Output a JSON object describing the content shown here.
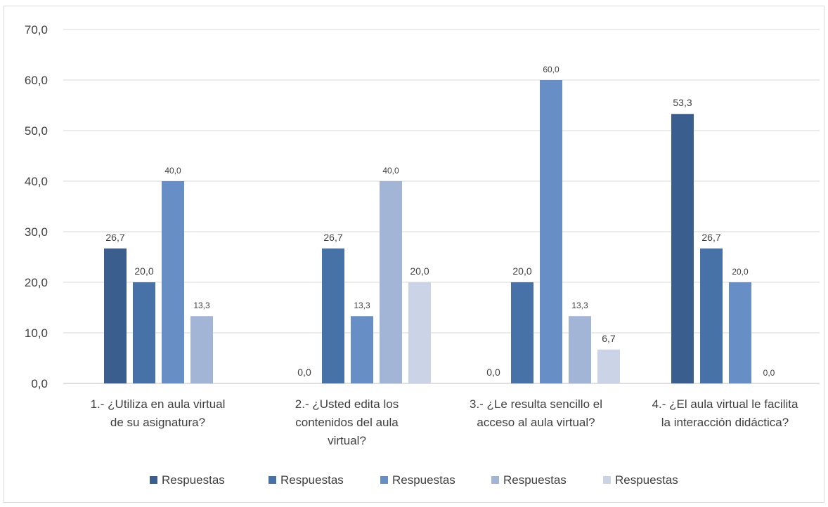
{
  "chart_data": {
    "type": "bar",
    "title": "",
    "xlabel": "",
    "ylabel": "",
    "ylim": [
      0,
      70
    ],
    "yticks": [
      "0,0",
      "10,0",
      "20,0",
      "30,0",
      "40,0",
      "50,0",
      "60,0",
      "70,0"
    ],
    "grid": true,
    "legend_position": "bottom",
    "categories": [
      [
        "1.- ¿Utiliza en aula virtual",
        "de su asignatura?"
      ],
      [
        "2.- ¿Usted edita los",
        "contenidos del aula",
        "virtual?"
      ],
      [
        "3.-  ¿Le resulta sencillo el",
        "acceso al aula virtual?"
      ],
      [
        "4.- ¿El aula virtual le facilita",
        "la interacción didáctica?"
      ]
    ],
    "series": [
      {
        "name": "Respuestas",
        "color": "#3a5f8f",
        "values": [
          26.7,
          0.0,
          0.0,
          53.3
        ],
        "labels": [
          "26,7",
          "0,0",
          "0,0",
          "53,3"
        ]
      },
      {
        "name": "Respuestas",
        "color": "#4672a8",
        "values": [
          20.0,
          26.7,
          20.0,
          26.7
        ],
        "labels": [
          "20,0",
          "26,7",
          "20,0",
          "26,7"
        ]
      },
      {
        "name": "Respuestas",
        "color": "#678fc5",
        "values": [
          40.0,
          13.3,
          60.0,
          20.0
        ],
        "labels": [
          "40,0",
          "13,3",
          "60,0",
          "20,0"
        ]
      },
      {
        "name": "Respuestas",
        "color": "#a3b5d6",
        "values": [
          13.3,
          40.0,
          13.3,
          0.0
        ],
        "labels": [
          "13,3",
          "40,0",
          "13,3",
          "0,0"
        ]
      },
      {
        "name": "Respuestas",
        "color": "#cbd4e6",
        "values": [
          null,
          20.0,
          6.7,
          null
        ],
        "labels": [
          null,
          "20,0",
          "6,7",
          null
        ]
      }
    ]
  }
}
